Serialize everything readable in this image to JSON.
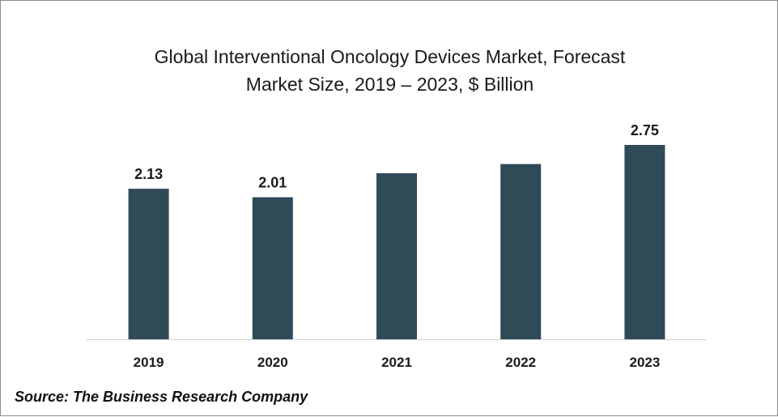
{
  "chart_data": {
    "type": "bar",
    "title": "Global Interventional Oncology Devices Market, Forecast",
    "subtitle": "Market Size, 2019 – 2023, $ Billion",
    "xlabel": "",
    "ylabel": "",
    "categories": [
      "2019",
      "2020",
      "2021",
      "2022",
      "2023"
    ],
    "values": [
      2.13,
      2.01,
      2.35,
      2.48,
      2.75
    ],
    "data_labels": [
      "2.13",
      "2.01",
      "",
      "",
      "2.75"
    ],
    "ylim": [
      0,
      2.75
    ],
    "grid": false,
    "legend": "none",
    "bar_color": "#2f4b58"
  },
  "source": "Source: The Business Research Company"
}
